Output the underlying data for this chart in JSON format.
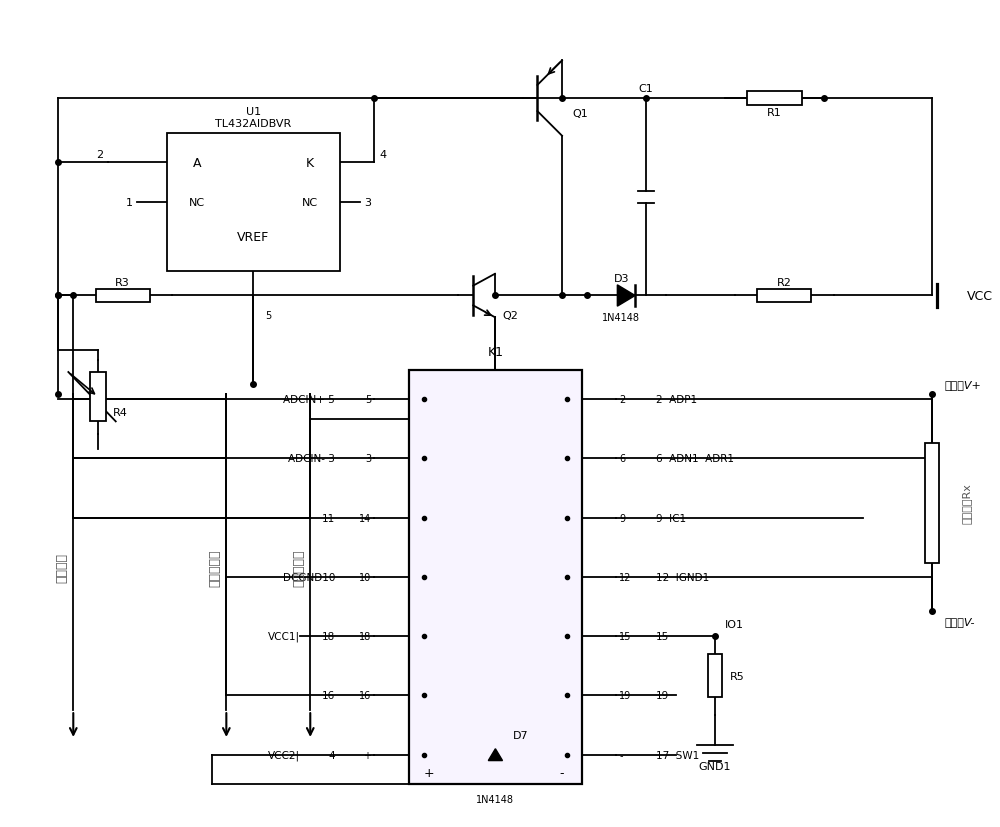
{
  "bg_color": "#ffffff",
  "line_width": 1.3,
  "figsize": [
    10.0,
    8.28
  ],
  "dpi": 100,
  "u1_label1": "U1",
  "u1_label2": "TL432AIDBVR",
  "u1_inner": [
    "A",
    "K",
    "NC",
    "NC",
    "VREF"
  ],
  "k1_label": "K1",
  "k1_left_pins": [
    "5",
    "3",
    "14",
    "10",
    "18",
    "16",
    "+"
  ],
  "k1_right_pins": [
    "2",
    "6",
    "9",
    "12",
    "15",
    "19",
    "-"
  ],
  "k1_left_labels": [
    "ADCIN+ 5",
    "ADCIN- 3",
    "11",
    "DCGND10",
    "18",
    "16",
    "4"
  ],
  "k1_right_labels": [
    "2  ADP1",
    "6  ADN1  ADR1",
    "9  IC1",
    "12  IGND1",
    "15",
    "19",
    "17  SW1"
  ],
  "k1_extra_left": [
    "",
    "",
    "",
    "",
    "VCC1|",
    "",
    "VCC2|"
  ],
  "chinese_labels": [
    "测量点V+",
    "测量点V-",
    "被测电阻Rx",
    "测量电流",
    "测量电压正",
    "测量电压负"
  ],
  "component_labels": {
    "Q1": "Q1",
    "Q2": "Q2",
    "C1": "C1",
    "R1": "R1",
    "R2": "R2",
    "R3": "R3",
    "R4": "R4",
    "R5": "R5",
    "D3": "D3",
    "D7": "D7",
    "D3_type": "1N4148",
    "D7_type": "1N4148",
    "VCC": "VCC",
    "GND1": "GND1",
    "IO1": "IO1"
  }
}
